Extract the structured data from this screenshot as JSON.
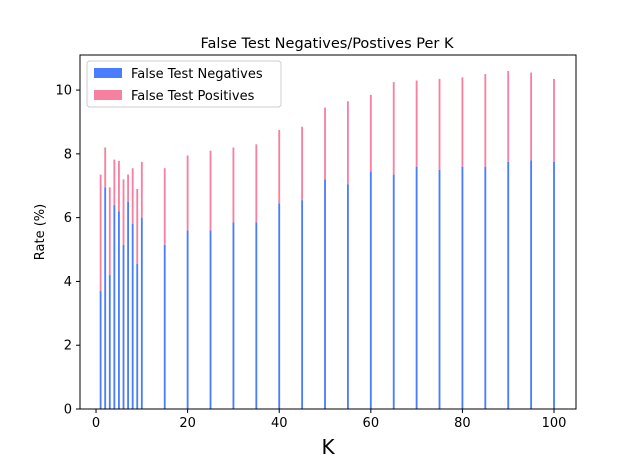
{
  "chart_data": {
    "type": "bar",
    "stacked": true,
    "title": "False Test Negatives/Postives Per K",
    "xlabel": "K",
    "ylabel": "Rate (%)",
    "xlim": [
      -3.5,
      104.8
    ],
    "ylim": [
      0,
      11.1
    ],
    "xticks": [
      0,
      20,
      40,
      60,
      80,
      100
    ],
    "yticks": [
      0,
      2,
      4,
      6,
      8,
      10
    ],
    "legend_position": "top-left",
    "grid": false,
    "x": [
      1,
      2,
      3,
      4,
      5,
      6,
      7,
      8,
      9,
      10,
      15,
      20,
      25,
      30,
      35,
      40,
      45,
      50,
      55,
      60,
      65,
      70,
      75,
      80,
      85,
      90,
      95,
      100
    ],
    "series": [
      {
        "name": "False Test Negatives",
        "color": "#4a7cff",
        "values": [
          3.7,
          6.95,
          4.2,
          6.4,
          6.2,
          5.15,
          6.5,
          5.8,
          4.55,
          6.0,
          5.15,
          5.6,
          5.6,
          5.85,
          5.85,
          6.45,
          6.55,
          7.2,
          7.05,
          7.45,
          7.35,
          7.6,
          7.5,
          7.6,
          7.6,
          7.75,
          7.8,
          7.75
        ]
      },
      {
        "name": "False Test Positives",
        "color": "#f77fa0",
        "values": [
          3.65,
          1.25,
          2.75,
          1.42,
          1.58,
          2.05,
          0.85,
          1.75,
          2.35,
          1.75,
          2.4,
          2.35,
          2.5,
          2.35,
          2.45,
          2.3,
          2.3,
          2.25,
          2.6,
          2.4,
          2.9,
          2.7,
          2.85,
          2.8,
          2.9,
          2.85,
          2.75,
          2.6
        ]
      }
    ]
  }
}
